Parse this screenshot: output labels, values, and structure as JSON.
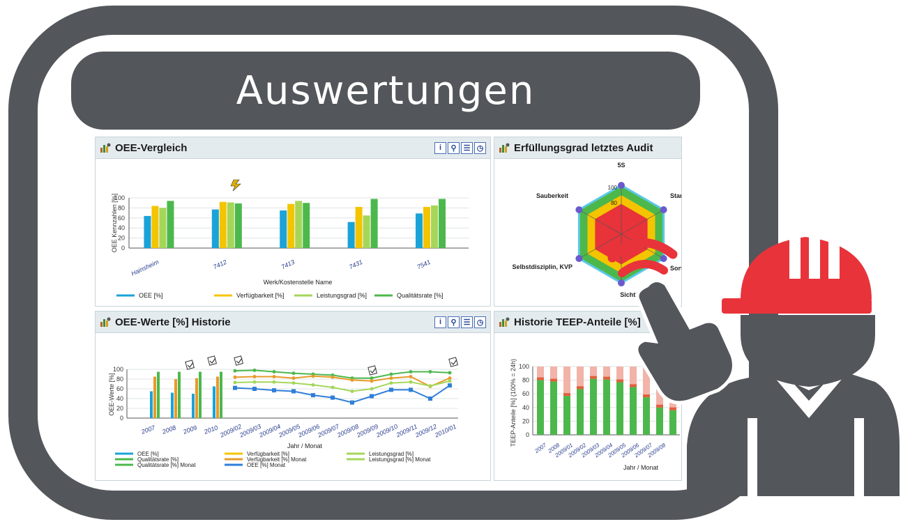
{
  "banner": {
    "title": "Auswertungen"
  },
  "colors": {
    "frame": "#53565a",
    "oee": "#1aa3d9",
    "availability": "#f5c400",
    "performance": "#a5d65a",
    "quality": "#4cb84c",
    "helmet": "#e8333a"
  },
  "panels": {
    "oee_compare": {
      "title": "OEE-Vergleich"
    },
    "audit": {
      "title": "Erfüllungsgrad letztes Audit"
    },
    "oee_history": {
      "title": "OEE-Werte [%] Historie"
    },
    "teep": {
      "title": "Historie TEEP-Anteile [%]"
    }
  },
  "toolbar_icons": [
    "info-icon",
    "zoom-icon",
    "export-icon",
    "clock-icon"
  ],
  "chart_data": [
    {
      "type": "bar",
      "ylabel": "OEE Kennzahlen [%]",
      "xlabel": "Werk/Kostenstelle Name",
      "ylim": [
        0,
        100
      ],
      "yticks": [
        "100",
        "80",
        "60",
        "40",
        "20",
        "0"
      ],
      "categories": [
        "Hainsheim",
        "7412",
        "7413",
        "7431",
        "7541"
      ],
      "series": [
        {
          "name": "OEE [%]",
          "values": [
            64,
            77,
            75,
            52,
            69
          ]
        },
        {
          "name": "Verfügbarkeit [%]",
          "values": [
            84,
            92,
            88,
            82,
            82
          ]
        },
        {
          "name": "Leistungsgrad [%]",
          "values": [
            80,
            91,
            94,
            65,
            85
          ]
        },
        {
          "name": "Qualitätsrate [%]",
          "values": [
            94,
            89,
            90,
            98,
            98
          ]
        }
      ]
    },
    {
      "type": "radar",
      "axes": [
        "5S",
        "Star",
        "Sort",
        "Sichtbare Ord",
        "Selbstdisziplin, KVP",
        "Sauberkeit"
      ],
      "ticks": [
        "100",
        "80"
      ],
      "values": [
        100,
        100,
        100,
        100,
        100,
        100
      ]
    },
    {
      "type": "line",
      "ylabel": "OEE-Werte [%]",
      "xlabel": "Jahr / Monat",
      "ylim": [
        0,
        100
      ],
      "yticks": [
        "100",
        "80",
        "60",
        "40",
        "20",
        "0"
      ],
      "years": [
        "2007",
        "2008",
        "2009",
        "2010"
      ],
      "year_series": [
        {
          "name": "OEE [%]",
          "values": [
            55,
            52,
            50,
            65
          ]
        },
        {
          "name": "Verfügbarkeit [%]",
          "values": [
            85,
            80,
            82,
            85
          ]
        },
        {
          "name": "Qualitätsrate [%]",
          "values": [
            95,
            95,
            95,
            95
          ]
        }
      ],
      "months": [
        "2009/02",
        "2009/03",
        "2009/04",
        "2009/05",
        "2009/06",
        "2009/07",
        "2009/08",
        "2009/09",
        "2009/10",
        "2009/11",
        "2009/12",
        "2010/01"
      ],
      "month_series": [
        {
          "name": "Qualitätsrate [%] Monat",
          "values": [
            97,
            98,
            95,
            92,
            90,
            88,
            82,
            82,
            90,
            95,
            95,
            93
          ]
        },
        {
          "name": "Verfügbarkeit [%] Monat",
          "values": [
            84,
            85,
            85,
            82,
            86,
            84,
            78,
            76,
            82,
            85,
            65,
            82
          ]
        },
        {
          "name": "Leistungsgrad [%] Monat",
          "values": [
            73,
            74,
            74,
            72,
            68,
            63,
            55,
            60,
            72,
            74,
            66,
            76
          ]
        },
        {
          "name": "OEE [%] Monat",
          "values": [
            62,
            60,
            57,
            55,
            47,
            42,
            32,
            45,
            58,
            58,
            40,
            67
          ]
        }
      ],
      "legend": [
        "OEE [%]",
        "Verfügbarkeit [%]",
        "Leistungsgrad [%]",
        "Qualitätsrate [%]",
        "Verfügbarkeit [%] Monat",
        "Leistungsgrad [%] Monat",
        "Qualitätsrate [%] Monat",
        "OEE [%] Monat"
      ]
    },
    {
      "type": "bar",
      "stacked": true,
      "ylabel": "TEEP-Anteile [%] (100% = 24h)",
      "xlabel": "Jahr / Monat",
      "ylim": [
        0,
        100
      ],
      "yticks": [
        "100",
        "80",
        "60",
        "40",
        "20",
        "0"
      ],
      "categories": [
        "2007",
        "2008",
        "2009/01",
        "2009/02",
        "2009/03",
        "2009/04",
        "2009/05",
        "2009/06",
        "2009/07",
        "2009/08"
      ],
      "values": [
        80,
        78,
        57,
        67,
        82,
        81,
        77,
        70,
        55,
        40
      ]
    }
  ],
  "teep_extra": {
    "last_value": 36
  }
}
